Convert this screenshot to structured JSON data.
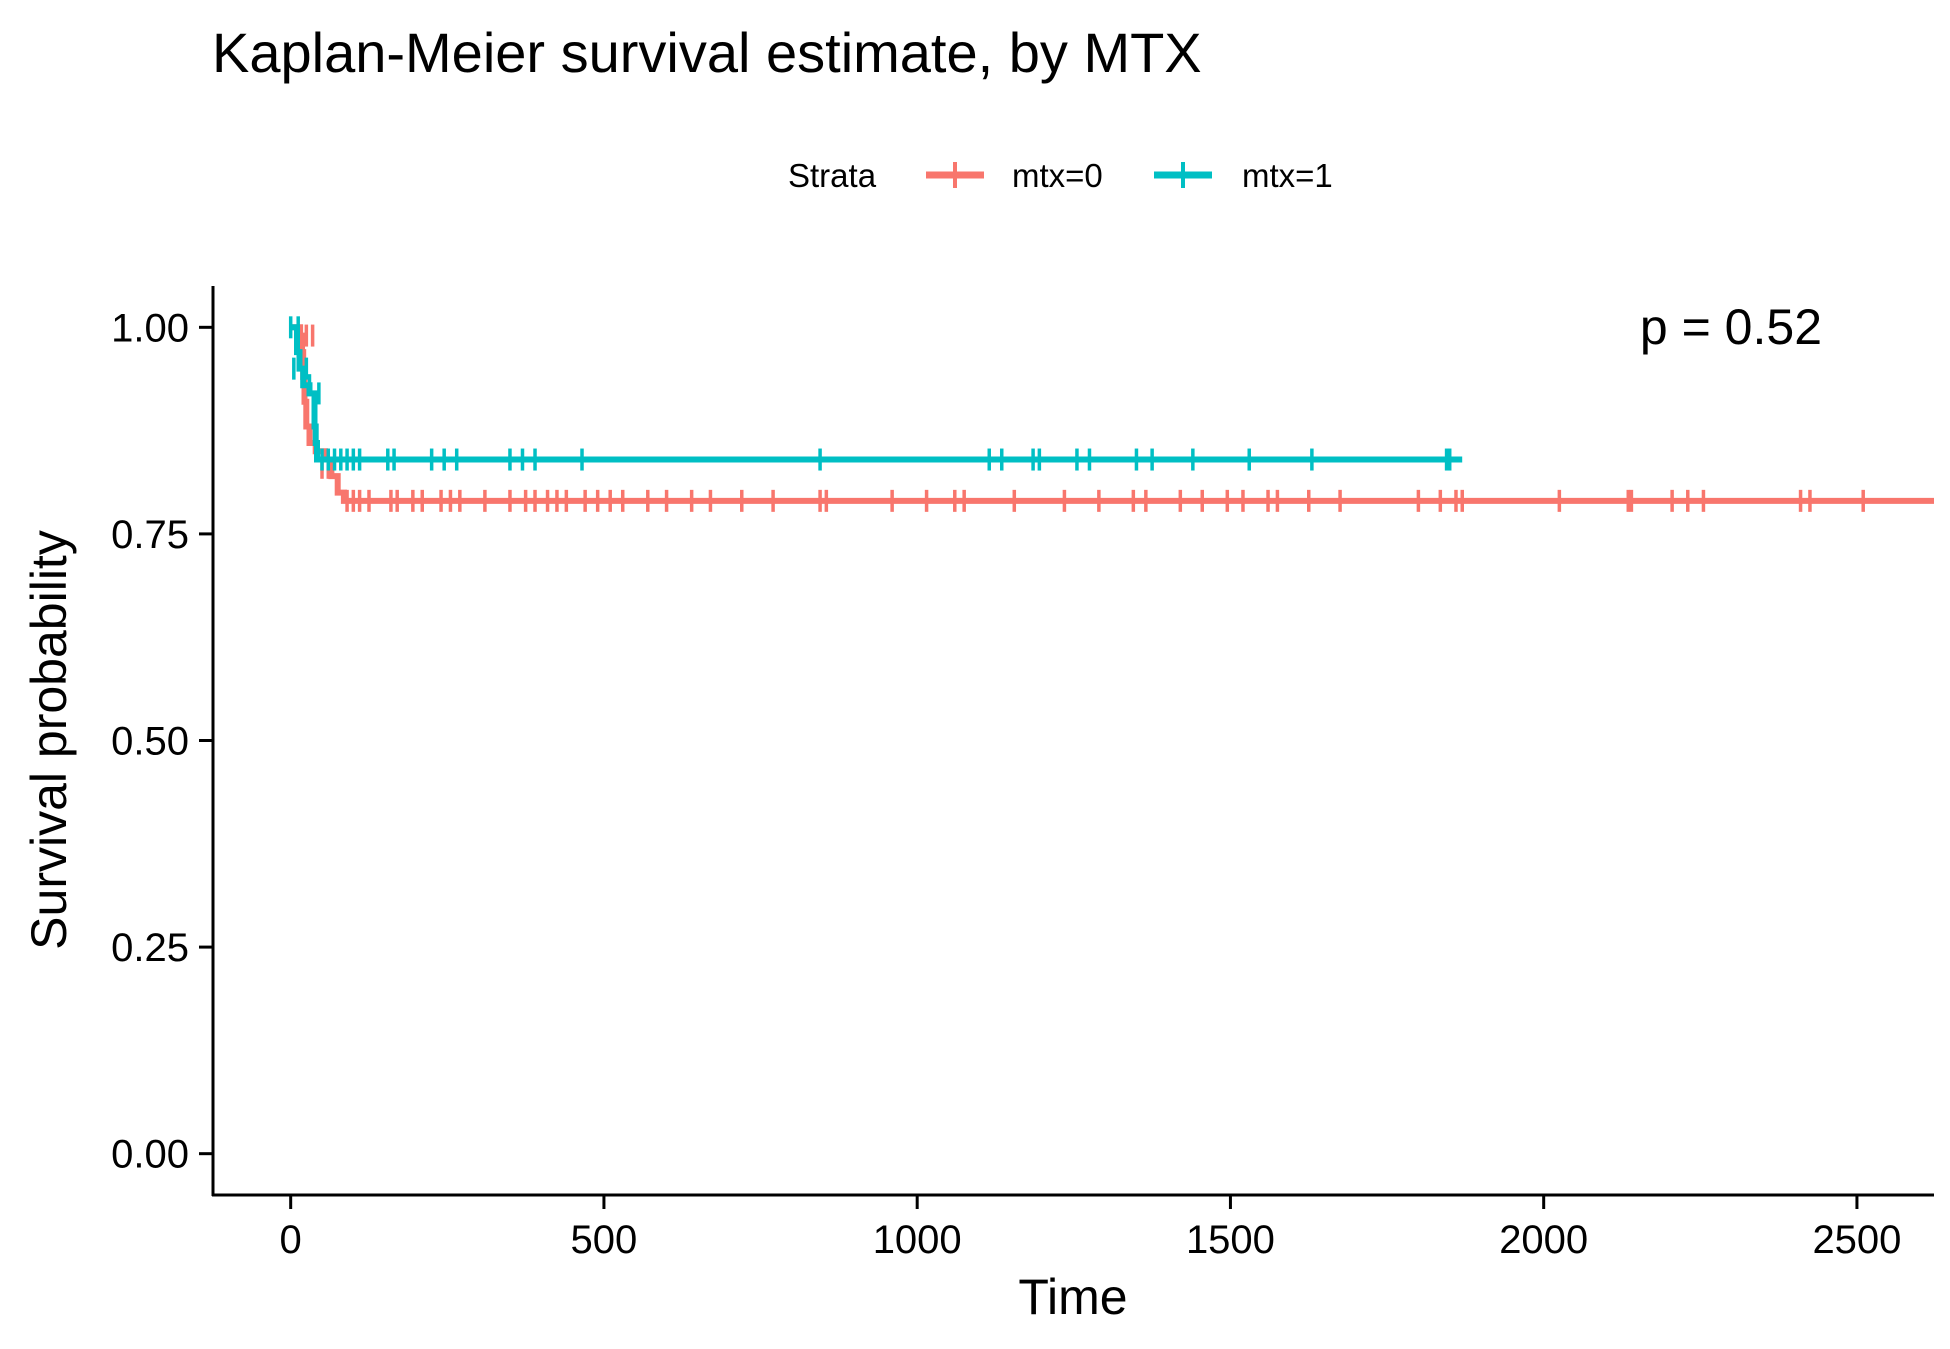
{
  "chart_data": {
    "type": "line",
    "title": "Kaplan-Meier survival estimate, by MTX",
    "xlabel": "Time",
    "ylabel": "Survival probability",
    "xlim": [
      -124,
      2623
    ],
    "ylim": [
      -0.05,
      1.05
    ],
    "x_ticks": [
      0,
      500,
      1000,
      1500,
      2000,
      2500
    ],
    "x_tick_labels": [
      "0",
      "500",
      "1000",
      "1500",
      "2000",
      "2500"
    ],
    "y_ticks": [
      0,
      0.25,
      0.5,
      0.75,
      1.0
    ],
    "y_tick_labels": [
      "0.00",
      "0.25",
      "0.50",
      "0.75",
      "1.00"
    ],
    "grid": false,
    "legend": {
      "title": "Strata",
      "position": "top",
      "entries": [
        "mtx=0",
        "mtx=1"
      ]
    },
    "annotation": "p = 0.52",
    "series": [
      {
        "name": "mtx=0",
        "color": "#F8766D",
        "steps": [
          [
            0,
            1.0
          ],
          [
            15,
            0.99
          ],
          [
            18,
            0.97
          ],
          [
            20,
            0.94
          ],
          [
            22,
            0.91
          ],
          [
            25,
            0.88
          ],
          [
            30,
            0.86
          ],
          [
            40,
            0.85
          ],
          [
            55,
            0.84
          ],
          [
            65,
            0.82
          ],
          [
            75,
            0.8
          ],
          [
            85,
            0.79
          ],
          [
            2623,
            0.79
          ]
        ],
        "censored": [
          [
            25,
            0.99
          ],
          [
            35,
            0.99
          ],
          [
            50,
            0.83
          ],
          [
            60,
            0.83
          ],
          [
            90,
            0.79
          ],
          [
            100,
            0.79
          ],
          [
            110,
            0.79
          ],
          [
            125,
            0.79
          ],
          [
            160,
            0.79
          ],
          [
            170,
            0.79
          ],
          [
            195,
            0.79
          ],
          [
            210,
            0.79
          ],
          [
            240,
            0.79
          ],
          [
            255,
            0.79
          ],
          [
            270,
            0.79
          ],
          [
            310,
            0.79
          ],
          [
            350,
            0.79
          ],
          [
            375,
            0.79
          ],
          [
            390,
            0.79
          ],
          [
            410,
            0.79
          ],
          [
            425,
            0.79
          ],
          [
            440,
            0.79
          ],
          [
            470,
            0.79
          ],
          [
            490,
            0.79
          ],
          [
            510,
            0.79
          ],
          [
            530,
            0.79
          ],
          [
            570,
            0.79
          ],
          [
            600,
            0.79
          ],
          [
            640,
            0.79
          ],
          [
            670,
            0.79
          ],
          [
            720,
            0.79
          ],
          [
            770,
            0.79
          ],
          [
            845,
            0.79
          ],
          [
            855,
            0.79
          ],
          [
            960,
            0.79
          ],
          [
            1015,
            0.79
          ],
          [
            1060,
            0.79
          ],
          [
            1075,
            0.79
          ],
          [
            1155,
            0.79
          ],
          [
            1235,
            0.79
          ],
          [
            1290,
            0.79
          ],
          [
            1345,
            0.79
          ],
          [
            1365,
            0.79
          ],
          [
            1420,
            0.79
          ],
          [
            1455,
            0.79
          ],
          [
            1495,
            0.79
          ],
          [
            1520,
            0.79
          ],
          [
            1560,
            0.79
          ],
          [
            1575,
            0.79
          ],
          [
            1625,
            0.79
          ],
          [
            1675,
            0.79
          ],
          [
            1800,
            0.79
          ],
          [
            1835,
            0.79
          ],
          [
            1860,
            0.79
          ],
          [
            1870,
            0.79
          ],
          [
            2025,
            0.79
          ],
          [
            2135,
            0.79
          ],
          [
            2140,
            0.79
          ],
          [
            2205,
            0.79
          ],
          [
            2230,
            0.79
          ],
          [
            2255,
            0.79
          ],
          [
            2410,
            0.79
          ],
          [
            2425,
            0.79
          ],
          [
            2510,
            0.79
          ]
        ]
      },
      {
        "name": "mtx=1",
        "color": "#00BFC4",
        "steps": [
          [
            0,
            1.0
          ],
          [
            10,
            0.97
          ],
          [
            14,
            0.95
          ],
          [
            20,
            0.93
          ],
          [
            30,
            0.92
          ],
          [
            38,
            0.88
          ],
          [
            40,
            0.86
          ],
          [
            42,
            0.84
          ],
          [
            1870,
            0.84
          ]
        ],
        "censored": [
          [
            0,
            1.0
          ],
          [
            12,
            1.0
          ],
          [
            5,
            0.95
          ],
          [
            25,
            0.95
          ],
          [
            30,
            0.93
          ],
          [
            45,
            0.92
          ],
          [
            50,
            0.84
          ],
          [
            60,
            0.84
          ],
          [
            70,
            0.84
          ],
          [
            80,
            0.84
          ],
          [
            90,
            0.84
          ],
          [
            100,
            0.84
          ],
          [
            110,
            0.84
          ],
          [
            155,
            0.84
          ],
          [
            165,
            0.84
          ],
          [
            225,
            0.84
          ],
          [
            245,
            0.84
          ],
          [
            265,
            0.84
          ],
          [
            350,
            0.84
          ],
          [
            370,
            0.84
          ],
          [
            390,
            0.84
          ],
          [
            465,
            0.84
          ],
          [
            845,
            0.84
          ],
          [
            1115,
            0.84
          ],
          [
            1135,
            0.84
          ],
          [
            1185,
            0.84
          ],
          [
            1195,
            0.84
          ],
          [
            1255,
            0.84
          ],
          [
            1275,
            0.84
          ],
          [
            1350,
            0.84
          ],
          [
            1375,
            0.84
          ],
          [
            1440,
            0.84
          ],
          [
            1530,
            0.84
          ],
          [
            1630,
            0.84
          ],
          [
            1845,
            0.84
          ],
          [
            1850,
            0.84
          ]
        ]
      }
    ]
  }
}
